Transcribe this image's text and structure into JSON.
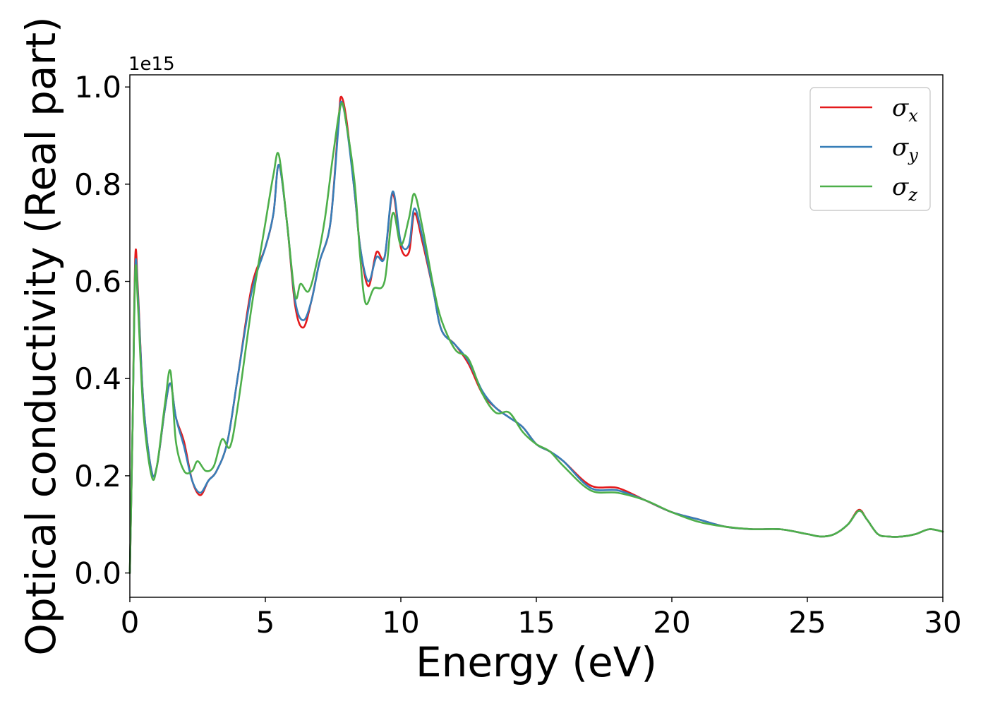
{
  "chart_data": {
    "type": "line",
    "xlabel": "Energy (eV)",
    "ylabel": "Optical conductivity (Real part)",
    "y_offset_label": "1e15",
    "xlim": [
      0,
      30
    ],
    "ylim": [
      -0.05,
      1.025
    ],
    "xticks": [
      0,
      5,
      10,
      15,
      20,
      25,
      30
    ],
    "xtick_labels": [
      "0",
      "5",
      "10",
      "15",
      "20",
      "25",
      "30"
    ],
    "yticks": [
      0.0,
      0.2,
      0.4,
      0.6,
      0.8,
      1.0
    ],
    "ytick_labels": [
      "0.0",
      "0.2",
      "0.4",
      "0.6",
      "0.8",
      "1.0"
    ],
    "grid": false,
    "legend_position": "top-right",
    "series": [
      {
        "name": "σx",
        "legend_base": "σ",
        "legend_sub": "x",
        "color": "#e41a1c",
        "x": [
          0,
          0.1,
          0.2,
          0.3,
          0.5,
          0.8,
          1.0,
          1.3,
          1.5,
          1.7,
          2.0,
          2.3,
          2.6,
          2.9,
          3.2,
          3.6,
          4.0,
          4.5,
          5.0,
          5.3,
          5.5,
          5.8,
          6.1,
          6.4,
          6.7,
          7.0,
          7.4,
          7.7,
          7.8,
          8.0,
          8.3,
          8.5,
          8.8,
          9.1,
          9.4,
          9.7,
          10.0,
          10.3,
          10.5,
          10.8,
          11.2,
          11.5,
          12.0,
          12.5,
          13.0,
          13.5,
          14.0,
          14.5,
          15.0,
          15.5,
          16.0,
          17.0,
          18.0,
          19.0,
          20.0,
          21.0,
          22.0,
          23.0,
          24.0,
          25.0,
          25.5,
          26.0,
          26.5,
          26.9,
          27.2,
          27.6,
          28.0,
          28.5,
          29.0,
          29.5,
          30.0
        ],
        "y": [
          0.0,
          0.3,
          0.65,
          0.58,
          0.35,
          0.21,
          0.22,
          0.34,
          0.39,
          0.32,
          0.27,
          0.19,
          0.16,
          0.19,
          0.21,
          0.27,
          0.41,
          0.59,
          0.67,
          0.74,
          0.84,
          0.72,
          0.55,
          0.505,
          0.56,
          0.64,
          0.72,
          0.93,
          0.98,
          0.93,
          0.78,
          0.67,
          0.59,
          0.66,
          0.65,
          0.78,
          0.67,
          0.66,
          0.74,
          0.68,
          0.58,
          0.5,
          0.47,
          0.43,
          0.37,
          0.34,
          0.32,
          0.3,
          0.265,
          0.25,
          0.23,
          0.18,
          0.175,
          0.15,
          0.125,
          0.11,
          0.095,
          0.09,
          0.09,
          0.08,
          0.075,
          0.08,
          0.1,
          0.13,
          0.11,
          0.08,
          0.075,
          0.075,
          0.08,
          0.09,
          0.085
        ]
      },
      {
        "name": "σy",
        "legend_base": "σ",
        "legend_sub": "y",
        "color": "#377eb8",
        "x": [
          0,
          0.1,
          0.2,
          0.3,
          0.5,
          0.8,
          1.0,
          1.3,
          1.5,
          1.7,
          2.0,
          2.3,
          2.6,
          2.9,
          3.2,
          3.6,
          4.0,
          4.5,
          5.0,
          5.3,
          5.5,
          5.8,
          6.1,
          6.4,
          6.7,
          7.0,
          7.4,
          7.7,
          7.8,
          8.0,
          8.3,
          8.5,
          8.8,
          9.1,
          9.4,
          9.7,
          10.0,
          10.3,
          10.5,
          10.8,
          11.2,
          11.5,
          12.0,
          12.5,
          13.0,
          13.5,
          14.0,
          14.5,
          15.0,
          15.5,
          16.0,
          17.0,
          18.0,
          19.0,
          20.0,
          21.0,
          22.0,
          23.0,
          24.0,
          25.0,
          25.5,
          26.0,
          26.5,
          26.9,
          27.2,
          27.6,
          28.0,
          28.5,
          29.0,
          29.5,
          30.0
        ],
        "y": [
          0.0,
          0.3,
          0.63,
          0.57,
          0.35,
          0.21,
          0.22,
          0.34,
          0.39,
          0.32,
          0.26,
          0.19,
          0.165,
          0.19,
          0.21,
          0.27,
          0.41,
          0.58,
          0.67,
          0.74,
          0.84,
          0.72,
          0.56,
          0.52,
          0.56,
          0.64,
          0.72,
          0.92,
          0.97,
          0.92,
          0.78,
          0.67,
          0.6,
          0.65,
          0.65,
          0.785,
          0.68,
          0.675,
          0.75,
          0.69,
          0.58,
          0.5,
          0.47,
          0.435,
          0.375,
          0.34,
          0.32,
          0.3,
          0.265,
          0.25,
          0.23,
          0.175,
          0.17,
          0.15,
          0.125,
          0.11,
          0.095,
          0.09,
          0.09,
          0.08,
          0.075,
          0.08,
          0.1,
          0.128,
          0.11,
          0.08,
          0.075,
          0.075,
          0.08,
          0.09,
          0.085
        ]
      },
      {
        "name": "σz",
        "legend_base": "σ",
        "legend_sub": "z",
        "color": "#4daf4a",
        "x": [
          0,
          0.1,
          0.2,
          0.3,
          0.5,
          0.8,
          1.0,
          1.3,
          1.5,
          1.7,
          2.0,
          2.3,
          2.5,
          2.8,
          3.1,
          3.4,
          3.7,
          4.0,
          4.5,
          5.0,
          5.3,
          5.5,
          5.8,
          6.1,
          6.3,
          6.6,
          6.9,
          7.2,
          7.5,
          7.8,
          8.0,
          8.3,
          8.5,
          8.7,
          9.0,
          9.4,
          9.7,
          10.0,
          10.3,
          10.5,
          10.8,
          11.2,
          11.5,
          12.0,
          12.5,
          13.0,
          13.5,
          14.0,
          14.5,
          15.0,
          15.5,
          16.0,
          17.0,
          18.0,
          19.0,
          20.0,
          21.0,
          22.0,
          23.0,
          24.0,
          25.0,
          25.5,
          26.0,
          26.5,
          26.9,
          27.2,
          27.6,
          28.0,
          28.5,
          29.0,
          29.5,
          30.0
        ],
        "y": [
          0.0,
          0.3,
          0.62,
          0.55,
          0.33,
          0.2,
          0.22,
          0.35,
          0.415,
          0.27,
          0.21,
          0.21,
          0.23,
          0.21,
          0.22,
          0.275,
          0.26,
          0.35,
          0.55,
          0.72,
          0.82,
          0.86,
          0.72,
          0.57,
          0.595,
          0.58,
          0.64,
          0.73,
          0.86,
          0.965,
          0.92,
          0.8,
          0.65,
          0.555,
          0.585,
          0.6,
          0.74,
          0.675,
          0.73,
          0.78,
          0.71,
          0.59,
          0.52,
          0.46,
          0.44,
          0.37,
          0.33,
          0.33,
          0.29,
          0.265,
          0.25,
          0.22,
          0.17,
          0.165,
          0.15,
          0.125,
          0.105,
          0.095,
          0.09,
          0.09,
          0.08,
          0.075,
          0.08,
          0.1,
          0.128,
          0.11,
          0.08,
          0.075,
          0.075,
          0.08,
          0.09,
          0.085
        ]
      }
    ]
  }
}
